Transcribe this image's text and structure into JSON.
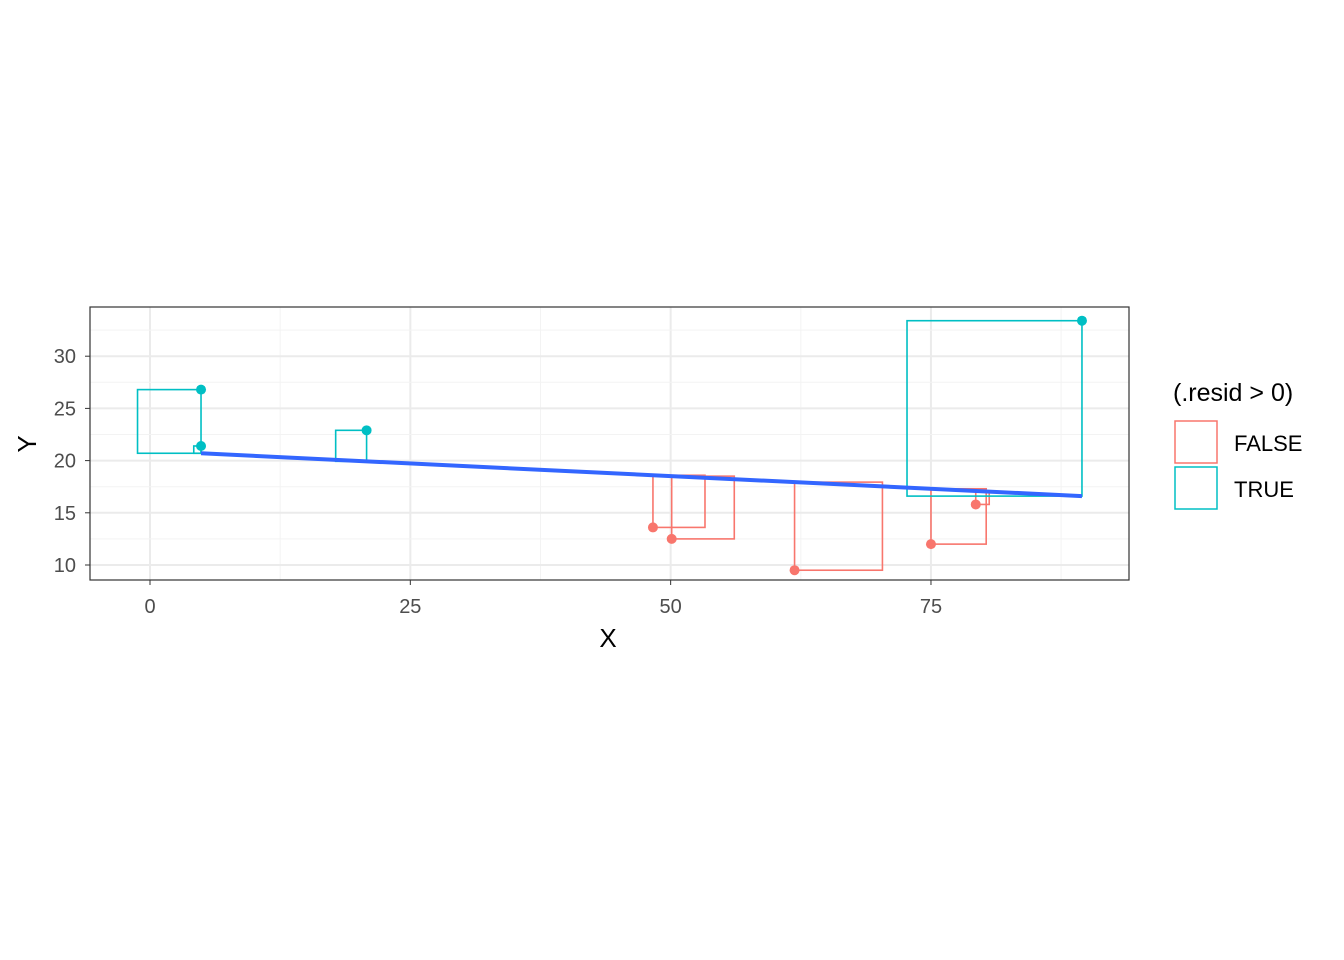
{
  "chart_data": {
    "type": "scatter",
    "title": "",
    "xlabel": "X",
    "ylabel": "Y",
    "xlim": [
      -5.8,
      94
    ],
    "ylim": [
      8.4,
      34.5
    ],
    "xticks": [
      0,
      25,
      50,
      75
    ],
    "yticks": [
      10,
      15,
      20,
      25,
      30
    ],
    "grid": true,
    "legend": {
      "title": "(.resid > 0)",
      "placement": "right",
      "entries": [
        {
          "label": "FALSE",
          "color": "#F8766D"
        },
        {
          "label": "TRUE",
          "color": "#00BFC4"
        }
      ]
    },
    "fit_line": {
      "color": "#3366FF",
      "intercept": 20.94,
      "slope": -0.0485,
      "x_range": [
        4.9,
        89.5
      ]
    },
    "points": [
      {
        "x": 4.9,
        "y": 26.8,
        "resid_positive": true
      },
      {
        "x": 4.9,
        "y": 21.4,
        "resid_positive": true
      },
      {
        "x": 20.8,
        "y": 22.9,
        "resid_positive": true
      },
      {
        "x": 48.3,
        "y": 13.6,
        "resid_positive": false
      },
      {
        "x": 50.1,
        "y": 12.5,
        "resid_positive": false
      },
      {
        "x": 61.9,
        "y": 9.5,
        "resid_positive": false
      },
      {
        "x": 75.0,
        "y": 12.0,
        "resid_positive": false
      },
      {
        "x": 79.3,
        "y": 15.8,
        "resid_positive": false
      },
      {
        "x": 89.5,
        "y": 33.4,
        "resid_positive": true
      }
    ]
  }
}
